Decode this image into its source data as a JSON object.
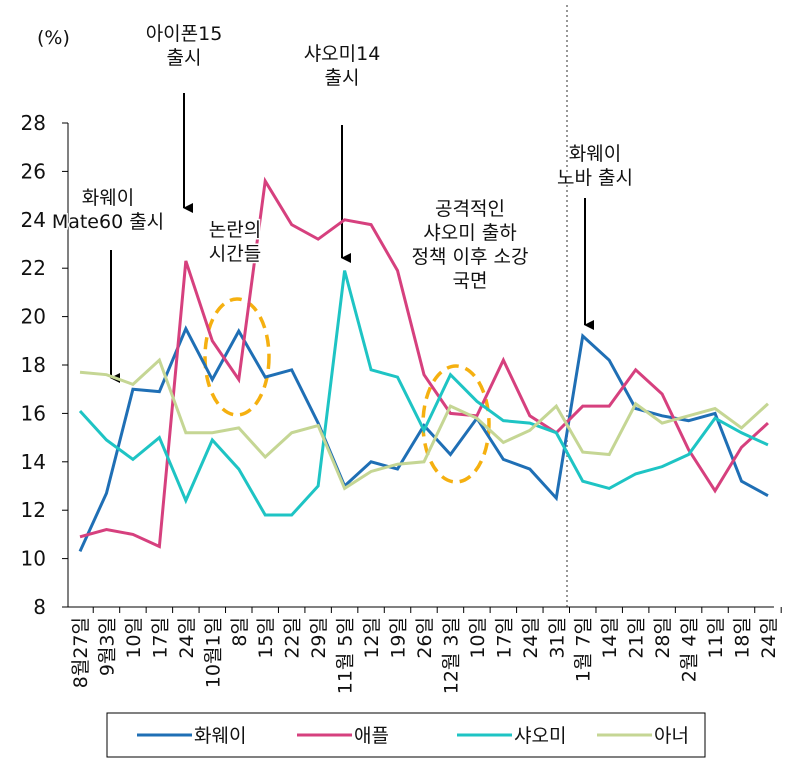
{
  "chart_data": {
    "type": "line",
    "y_unit_label": "(%)",
    "categories": [
      "8월27일",
      "9월3일",
      "10일",
      "17일",
      "24일",
      "10월1일",
      "8일",
      "15일",
      "22일",
      "29일",
      "11월 5일",
      "12일",
      "19일",
      "26일",
      "12월 3일",
      "10일",
      "17일",
      "24일",
      "31일",
      "1월 7일",
      "14일",
      "21일",
      "28일",
      "2월 4일",
      "11일",
      "18일",
      "24일"
    ],
    "series": [
      {
        "name": "화웨이",
        "color": "#1f6fb5",
        "values": [
          10.3,
          12.7,
          17.0,
          16.9,
          19.5,
          17.4,
          19.4,
          17.5,
          17.8,
          15.6,
          13.0,
          14.0,
          13.7,
          15.5,
          14.3,
          15.8,
          14.1,
          13.7,
          12.5,
          19.2,
          18.2,
          16.2,
          15.9,
          15.7,
          16.0,
          13.2,
          12.6
        ]
      },
      {
        "name": "애플",
        "color": "#d6407e",
        "values": [
          10.9,
          11.2,
          11.0,
          10.5,
          22.3,
          19.0,
          17.4,
          25.6,
          23.8,
          23.2,
          24.0,
          23.8,
          21.9,
          17.6,
          16.0,
          15.9,
          18.2,
          15.9,
          15.2,
          16.3,
          16.3,
          17.8,
          16.8,
          14.5,
          12.8,
          14.6,
          15.6
        ]
      },
      {
        "name": "샤오미",
        "color": "#1ec4c4",
        "values": [
          16.1,
          14.9,
          14.1,
          15.0,
          12.4,
          14.9,
          13.7,
          11.8,
          11.8,
          13.0,
          21.9,
          17.8,
          17.5,
          15.3,
          17.6,
          16.5,
          15.7,
          15.6,
          15.2,
          13.2,
          12.9,
          13.5,
          13.8,
          14.3,
          15.8,
          15.2,
          14.7
        ]
      },
      {
        "name": "아너",
        "color": "#c5d694",
        "values": [
          17.7,
          17.6,
          17.2,
          18.2,
          15.2,
          15.2,
          15.4,
          14.2,
          15.2,
          15.5,
          12.9,
          13.6,
          13.9,
          14.0,
          16.3,
          15.8,
          14.8,
          15.3,
          16.3,
          14.4,
          14.3,
          16.4,
          15.6,
          15.9,
          16.2,
          15.4,
          16.4
        ]
      }
    ],
    "ylim": [
      8,
      28
    ],
    "yticks": [
      8,
      10,
      12,
      14,
      16,
      18,
      20,
      22,
      24,
      26,
      28
    ],
    "annotations": [
      {
        "lines": [
          "아이폰15",
          "출시"
        ]
      },
      {
        "lines": [
          "샤오미14",
          "출시"
        ]
      },
      {
        "lines": [
          "화웨이",
          "Mate60 출시"
        ]
      },
      {
        "lines": [
          "논란의",
          "시간들"
        ]
      },
      {
        "lines": [
          "공격적인",
          "샤오미 출하",
          "정책 이후 소강",
          "국면"
        ]
      },
      {
        "lines": [
          "화웨이",
          "노바 출시"
        ]
      }
    ]
  }
}
